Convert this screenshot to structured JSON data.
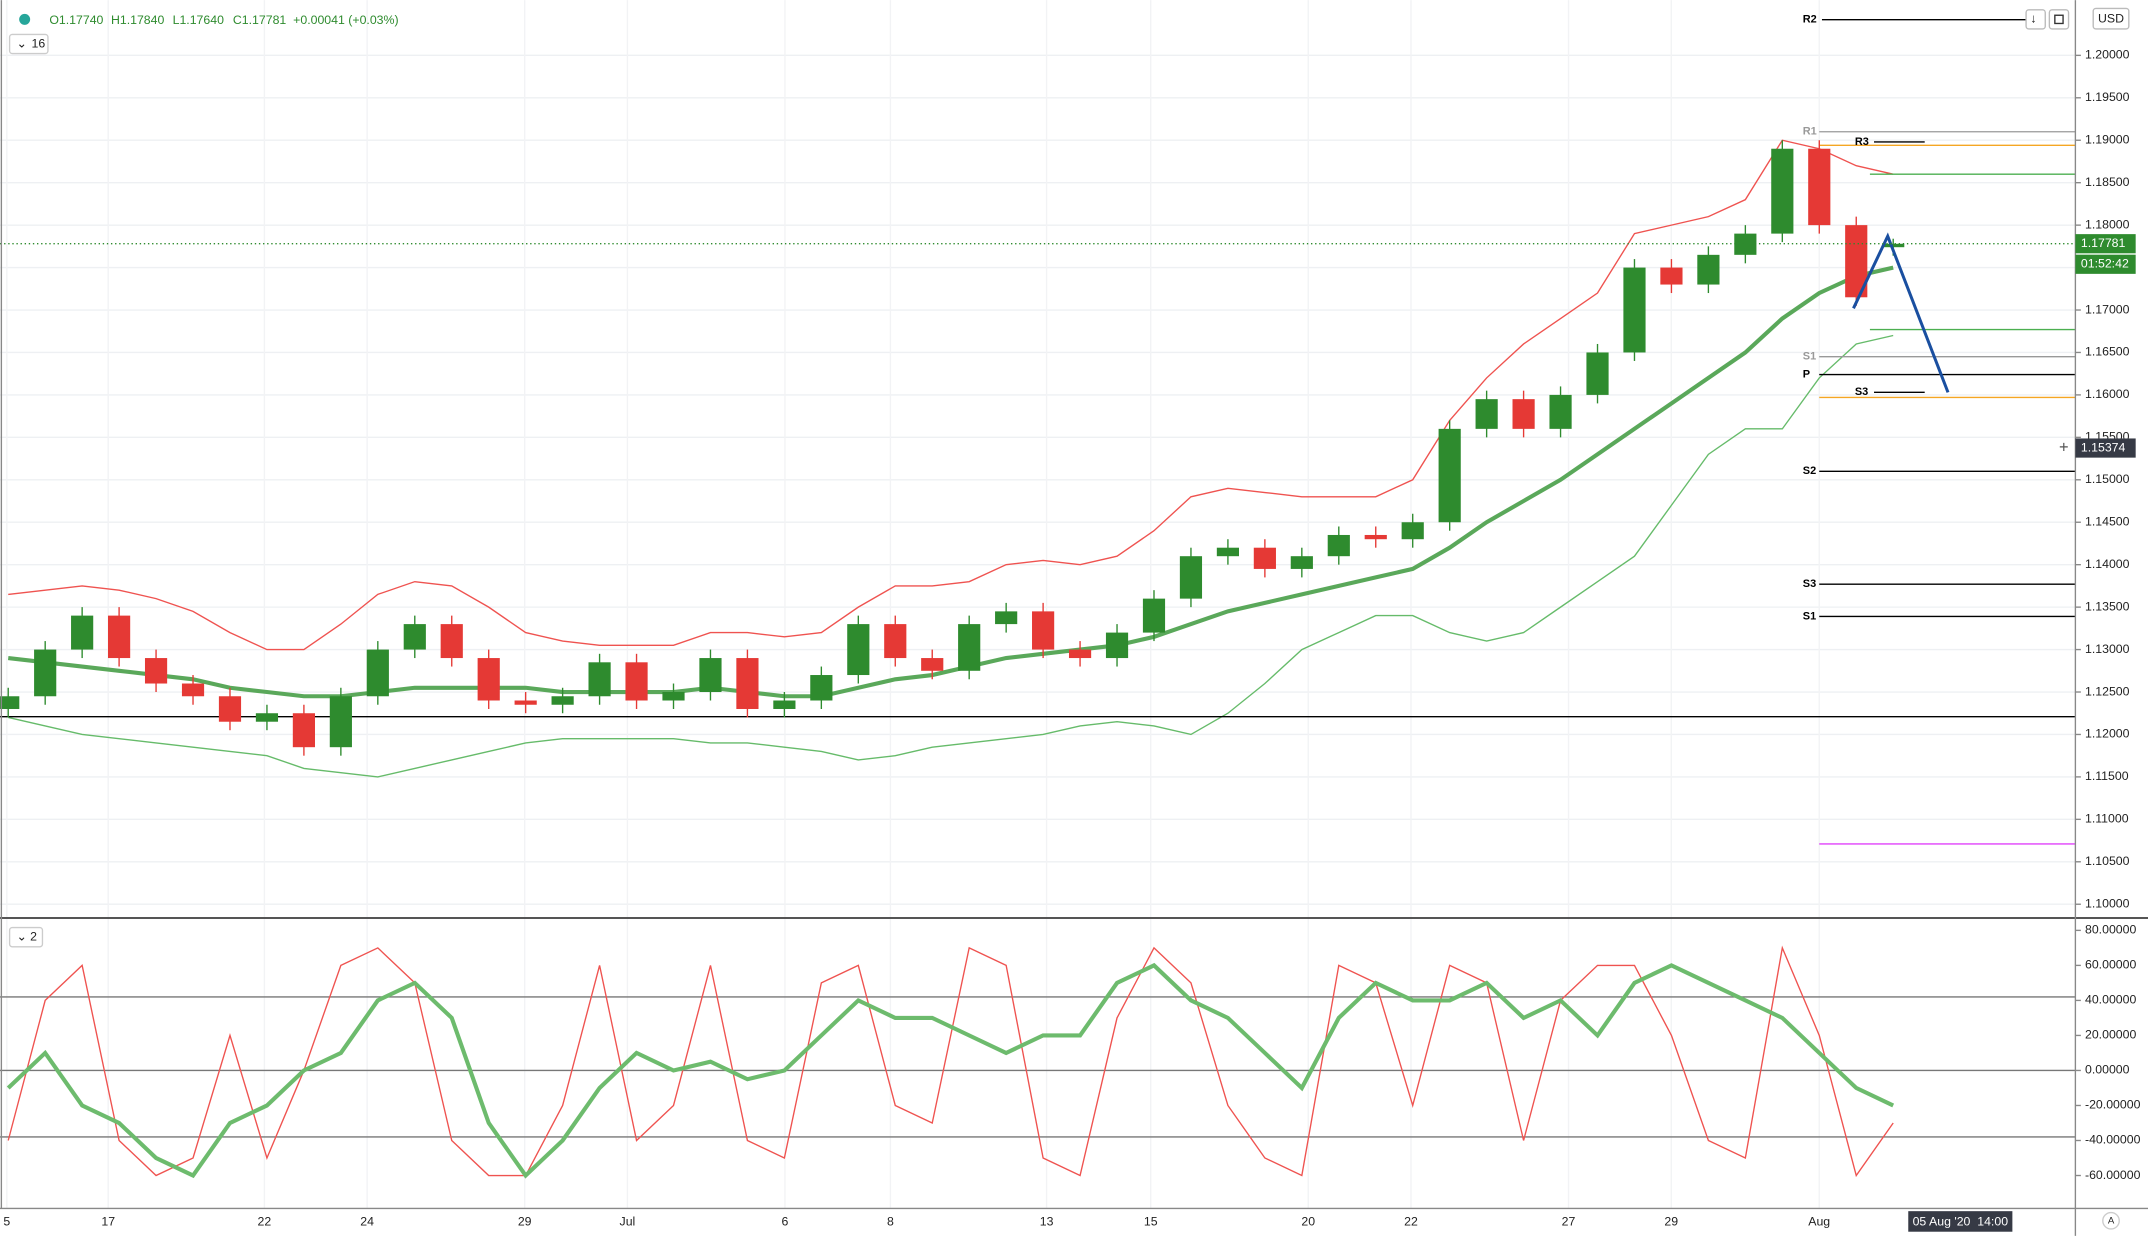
{
  "header": {
    "open": "O1.17740",
    "high": "H1.17840",
    "low": "L1.17640",
    "close": "C1.17781",
    "change": "+0.00041 (+0.03%)",
    "indicators_count": "16",
    "osc_indicators_count": "2",
    "currency": "USD"
  },
  "chart_data": [
    {
      "type": "candlestick",
      "up_color": "#2e8b2e",
      "down_color": "#e53935",
      "open": [
        1.123,
        1.1245,
        1.13,
        1.134,
        1.129,
        1.126,
        1.1245,
        1.1215,
        1.1225,
        1.1185,
        1.1245,
        1.13,
        1.133,
        1.129,
        1.124,
        1.1235,
        1.1245,
        1.1285,
        1.124,
        1.125,
        1.129,
        1.123,
        1.124,
        1.127,
        1.133,
        1.129,
        1.1275,
        1.133,
        1.1345,
        1.13,
        1.129,
        1.132,
        1.136,
        1.141,
        1.142,
        1.1395,
        1.141,
        1.1435,
        1.143,
        1.145,
        1.156,
        1.1595,
        1.156,
        1.16,
        1.165,
        1.175,
        1.173,
        1.1765,
        1.179,
        1.189,
        1.18,
        1.1774
      ],
      "high": [
        1.1255,
        1.131,
        1.135,
        1.135,
        1.13,
        1.127,
        1.1255,
        1.1235,
        1.1235,
        1.1255,
        1.131,
        1.134,
        1.134,
        1.13,
        1.125,
        1.1255,
        1.1295,
        1.1295,
        1.126,
        1.13,
        1.13,
        1.125,
        1.128,
        1.134,
        1.134,
        1.13,
        1.134,
        1.1355,
        1.1355,
        1.131,
        1.133,
        1.137,
        1.142,
        1.143,
        1.143,
        1.142,
        1.1445,
        1.1445,
        1.146,
        1.157,
        1.1605,
        1.1605,
        1.161,
        1.166,
        1.176,
        1.176,
        1.1775,
        1.18,
        1.19,
        1.19,
        1.181,
        1.1784
      ],
      "low": [
        1.122,
        1.1235,
        1.129,
        1.128,
        1.125,
        1.1235,
        1.1205,
        1.1205,
        1.1175,
        1.1175,
        1.1235,
        1.129,
        1.128,
        1.123,
        1.1225,
        1.1225,
        1.1235,
        1.123,
        1.123,
        1.124,
        1.122,
        1.122,
        1.123,
        1.126,
        1.128,
        1.1265,
        1.1265,
        1.132,
        1.129,
        1.128,
        1.128,
        1.131,
        1.135,
        1.14,
        1.1385,
        1.1385,
        1.14,
        1.142,
        1.142,
        1.144,
        1.155,
        1.155,
        1.155,
        1.159,
        1.164,
        1.172,
        1.172,
        1.1755,
        1.178,
        1.179,
        1.1705,
        1.1764
      ],
      "close": [
        1.1245,
        1.13,
        1.134,
        1.129,
        1.126,
        1.1245,
        1.1215,
        1.1225,
        1.1185,
        1.1245,
        1.13,
        1.133,
        1.129,
        1.124,
        1.1235,
        1.1245,
        1.1285,
        1.124,
        1.125,
        1.129,
        1.123,
        1.124,
        1.127,
        1.133,
        1.129,
        1.1275,
        1.133,
        1.1345,
        1.13,
        1.129,
        1.132,
        1.136,
        1.141,
        1.142,
        1.1395,
        1.141,
        1.1435,
        1.143,
        1.145,
        1.156,
        1.1595,
        1.156,
        1.16,
        1.165,
        1.175,
        1.173,
        1.1765,
        1.179,
        1.189,
        1.18,
        1.1715,
        1.1778
      ],
      "overlays": [
        {
          "color": "#5aa85a",
          "width": 3,
          "values": [
            1.129,
            1.1285,
            1.128,
            1.1275,
            1.127,
            1.1265,
            1.1255,
            1.125,
            1.1245,
            1.1245,
            1.125,
            1.1255,
            1.1255,
            1.1255,
            1.1255,
            1.125,
            1.125,
            1.125,
            1.125,
            1.1255,
            1.125,
            1.1245,
            1.1245,
            1.1255,
            1.1265,
            1.127,
            1.128,
            1.129,
            1.1295,
            1.13,
            1.1305,
            1.1315,
            1.133,
            1.1345,
            1.1355,
            1.1365,
            1.1375,
            1.1385,
            1.1395,
            1.142,
            1.145,
            1.1475,
            1.15,
            1.153,
            1.156,
            1.159,
            1.162,
            1.165,
            1.169,
            1.172,
            1.174,
            1.175
          ]
        },
        {
          "color": "#ef5350",
          "width": 1,
          "values": [
            1.1365,
            1.137,
            1.1375,
            1.137,
            1.136,
            1.1345,
            1.132,
            1.13,
            1.13,
            1.133,
            1.1365,
            1.138,
            1.1375,
            1.135,
            1.132,
            1.131,
            1.1305,
            1.1305,
            1.1305,
            1.132,
            1.132,
            1.1315,
            1.132,
            1.135,
            1.1375,
            1.1375,
            1.138,
            1.14,
            1.1405,
            1.14,
            1.141,
            1.144,
            1.148,
            1.149,
            1.1485,
            1.148,
            1.148,
            1.148,
            1.15,
            1.157,
            1.162,
            1.166,
            1.169,
            1.172,
            1.179,
            1.18,
            1.181,
            1.183,
            1.19,
            1.189,
            1.187,
            1.186
          ]
        },
        {
          "color": "#66bb6a",
          "width": 1,
          "values": [
            1.122,
            1.121,
            1.12,
            1.1195,
            1.119,
            1.1185,
            1.118,
            1.1175,
            1.116,
            1.1155,
            1.115,
            1.116,
            1.117,
            1.118,
            1.119,
            1.1195,
            1.1195,
            1.1195,
            1.1195,
            1.119,
            1.119,
            1.1185,
            1.118,
            1.117,
            1.1175,
            1.1185,
            1.119,
            1.1195,
            1.12,
            1.121,
            1.1215,
            1.121,
            1.12,
            1.1225,
            1.126,
            1.13,
            1.132,
            1.134,
            1.134,
            1.132,
            1.131,
            1.132,
            1.135,
            1.138,
            1.141,
            1.147,
            1.153,
            1.156,
            1.156,
            1.162,
            1.166,
            1.167
          ]
        }
      ],
      "ylim": [
        1.0987,
        1.2065
      ],
      "yticks": [
        {
          "value": 1.1,
          "label": "1.10000"
        },
        {
          "value": 1.105,
          "label": "1.10500"
        },
        {
          "value": 1.11,
          "label": "1.11000"
        },
        {
          "value": 1.115,
          "label": "1.11500"
        },
        {
          "value": 1.12,
          "label": "1.12000"
        },
        {
          "value": 1.125,
          "label": "1.12500"
        },
        {
          "value": 1.13,
          "label": "1.13000"
        },
        {
          "value": 1.135,
          "label": "1.13500"
        },
        {
          "value": 1.14,
          "label": "1.14000"
        },
        {
          "value": 1.145,
          "label": "1.14500"
        },
        {
          "value": 1.15,
          "label": "1.15000"
        },
        {
          "value": 1.155,
          "label": "1.15500"
        },
        {
          "value": 1.16,
          "label": "1.16000"
        },
        {
          "value": 1.165,
          "label": "1.16500"
        },
        {
          "value": 1.17,
          "label": "1.17000"
        },
        {
          "value": 1.175,
          "label": "1.17500"
        },
        {
          "value": 1.18,
          "label": "1.18000"
        },
        {
          "value": 1.185,
          "label": "1.18500"
        },
        {
          "value": 1.19,
          "label": "1.19000"
        },
        {
          "value": 1.195,
          "label": "1.19500"
        },
        {
          "value": 1.2,
          "label": "1.20000"
        }
      ],
      "grid": true,
      "last_price": {
        "value": 1.17781,
        "label": "1.17781"
      },
      "countdown": "01:52:42",
      "crosshair_price": {
        "value": 1.15374,
        "label": "1.15374"
      },
      "levels": [
        {
          "label": "R2",
          "value": 1.2042,
          "color": "#000000"
        },
        {
          "label": "R1",
          "value": 1.191,
          "color": "#999999"
        },
        {
          "label": "R3",
          "value": 1.1898,
          "color": "#000000"
        },
        {
          "value": 1.1894,
          "color": "#f5a623"
        },
        {
          "value": 1.186,
          "color": "#4caf50"
        },
        {
          "value": 1.1677,
          "color": "#4caf50"
        },
        {
          "label": "S1",
          "value": 1.1645,
          "color": "#999999"
        },
        {
          "label": "P",
          "value": 1.1624,
          "color": "#000000"
        },
        {
          "label": "S3",
          "value": 1.1603,
          "color": "#000000"
        },
        {
          "value": 1.1597,
          "color": "#f5a623"
        },
        {
          "label": "S2",
          "value": 1.151,
          "color": "#000000"
        },
        {
          "label": "S3",
          "value": 1.1377,
          "color": "#000000"
        },
        {
          "label": "S1",
          "value": 1.1339,
          "color": "#000000"
        },
        {
          "value": 1.1221,
          "color": "#000000"
        },
        {
          "value": 1.1071,
          "color": "#e040fb"
        }
      ],
      "projection": {
        "color": "#1a4fa0",
        "values": [
          1.1702,
          1.1787,
          1.1603
        ]
      },
      "x_labels": [
        "5",
        "17",
        "22",
        "24",
        "29",
        "Jul",
        "6",
        "8",
        "13",
        "15",
        "20",
        "22",
        "27",
        "29",
        "Aug"
      ],
      "crosshair_time": "05 Aug '20  14:00"
    },
    {
      "type": "line",
      "series": [
        {
          "color": "#ef5350",
          "width": 1,
          "values": [
            -40,
            40,
            60,
            -40,
            -60,
            -50,
            20,
            -50,
            0,
            60,
            70,
            50,
            -40,
            -60,
            -60,
            -20,
            60,
            -40,
            -20,
            60,
            -40,
            -50,
            50,
            60,
            -20,
            -30,
            70,
            60,
            -50,
            -60,
            30,
            70,
            50,
            -20,
            -50,
            -60,
            60,
            50,
            -20,
            60,
            50,
            -40,
            40,
            60,
            60,
            20,
            -40,
            -50,
            70,
            20,
            -60,
            -30
          ]
        },
        {
          "color": "#6dbb6d",
          "width": 3,
          "values": [
            -10,
            10,
            -20,
            -30,
            -50,
            -60,
            -30,
            -20,
            0,
            10,
            40,
            50,
            30,
            -30,
            -60,
            -40,
            -10,
            10,
            0,
            5,
            -5,
            0,
            20,
            40,
            30,
            30,
            20,
            10,
            20,
            20,
            50,
            60,
            40,
            30,
            10,
            -10,
            30,
            50,
            40,
            40,
            50,
            30,
            40,
            20,
            50,
            60,
            50,
            40,
            30,
            10,
            -10,
            -20
          ]
        }
      ],
      "ylim": [
        -78.8,
        85.5
      ],
      "yticks": [
        {
          "value": 80,
          "label": "80.00000"
        },
        {
          "value": 60,
          "label": "60.00000"
        },
        {
          "value": 40,
          "label": "40.00000"
        },
        {
          "value": 20,
          "label": "20.00000"
        },
        {
          "value": 0,
          "label": "0.00000"
        },
        {
          "value": -20,
          "label": "-20.00000"
        },
        {
          "value": -40,
          "label": "-40.00000"
        },
        {
          "value": -60,
          "label": "-60.00000"
        }
      ],
      "hlines": [
        42,
        0,
        -38
      ]
    }
  ]
}
